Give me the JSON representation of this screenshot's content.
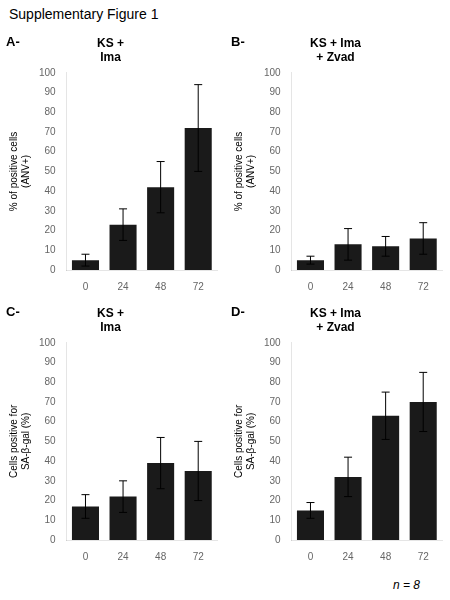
{
  "title": "Supplementary Figure 1",
  "annotations": [
    "n = 8"
  ],
  "chart_data": [
    {
      "type": "bar",
      "title": "KS +\nIma",
      "annotations": [
        "A-"
      ],
      "ylabel": "% of positive cells\n(ANV+)",
      "categories": [
        "0",
        "24",
        "48",
        "72"
      ],
      "values": [
        5,
        23,
        42,
        72
      ],
      "errors": [
        3,
        8,
        13,
        22
      ],
      "color": "#1a1a1a",
      "ylim": [
        0,
        100
      ],
      "yticks": [
        0,
        10,
        20,
        30,
        40,
        50,
        60,
        70,
        80,
        90,
        100
      ],
      "grid": false
    },
    {
      "type": "bar",
      "title": "KS + Ima\n+ Zvad",
      "annotations": [
        "B-"
      ],
      "ylabel": "% of positive cells\n(ANV+)",
      "categories": [
        "0",
        "24",
        "48",
        "72"
      ],
      "values": [
        5,
        13,
        12,
        16
      ],
      "errors": [
        2,
        8,
        5,
        8
      ],
      "color": "#1a1a1a",
      "ylim": [
        0,
        100
      ],
      "yticks": [
        0,
        10,
        20,
        30,
        40,
        50,
        60,
        70,
        80,
        90,
        100
      ],
      "grid": false
    },
    {
      "type": "bar",
      "title": "KS +\nIma",
      "annotations": [
        "C-"
      ],
      "ylabel": "Cells positive for\nSA-β-gal (%)",
      "categories": [
        "0",
        "24",
        "48",
        "72"
      ],
      "values": [
        17,
        22,
        39,
        35
      ],
      "errors": [
        6,
        8,
        13,
        15
      ],
      "color": "#1a1a1a",
      "ylim": [
        0,
        100
      ],
      "yticks": [
        0,
        10,
        20,
        30,
        40,
        50,
        60,
        70,
        80,
        90,
        100
      ],
      "grid": false
    },
    {
      "type": "bar",
      "title": "KS + Ima\n+ Zvad",
      "annotations": [
        "D-"
      ],
      "ylabel": "Cells positive for\nSA-β-gal (%)",
      "categories": [
        "0",
        "24",
        "48",
        "72"
      ],
      "values": [
        15,
        32,
        63,
        70
      ],
      "errors": [
        4,
        10,
        12,
        15
      ],
      "color": "#1a1a1a",
      "ylim": [
        0,
        100
      ],
      "yticks": [
        0,
        10,
        20,
        30,
        40,
        50,
        60,
        70,
        80,
        90,
        100
      ],
      "grid": false
    }
  ]
}
